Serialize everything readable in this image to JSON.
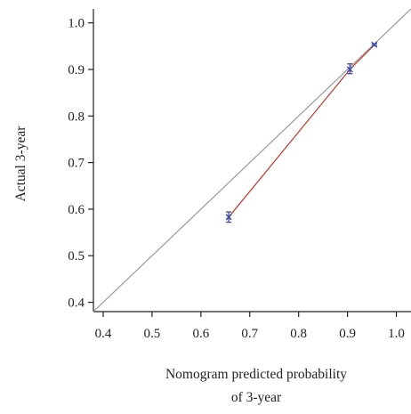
{
  "chart_data": {
    "type": "scatter",
    "xlabel_lines": [
      "Nomogram predicted probability",
      "of 3-year"
    ],
    "ylabel": "Actual 3-year",
    "xlim": [
      0.38,
      1.03
    ],
    "ylim": [
      0.38,
      1.03
    ],
    "x_ticks": [
      "0.4",
      "0.5",
      "0.6",
      "0.7",
      "0.8",
      "0.9",
      "1.0"
    ],
    "y_ticks": [
      "0.4",
      "0.5",
      "0.6",
      "0.7",
      "0.8",
      "0.9",
      "1.0"
    ],
    "reference_line": {
      "type": "diagonal",
      "from": [
        0.38,
        0.38
      ],
      "to": [
        1.03,
        1.03
      ],
      "color": "#999999"
    },
    "calibration_line": {
      "color": "#c0392b"
    },
    "series": [
      {
        "x": [
          0.657,
          0.905,
          0.955
        ],
        "y": [
          0.583,
          0.9,
          0.953
        ],
        "error_low": [
          0.572,
          0.891,
          0.951
        ],
        "error_high": [
          0.594,
          0.912,
          0.955
        ],
        "color": "#3f4aa3"
      }
    ],
    "grid": false
  },
  "colors": {
    "axis": "#222222",
    "diagonal": "#999999",
    "calibration": "#c0392b",
    "points": "#3f4aa3"
  }
}
